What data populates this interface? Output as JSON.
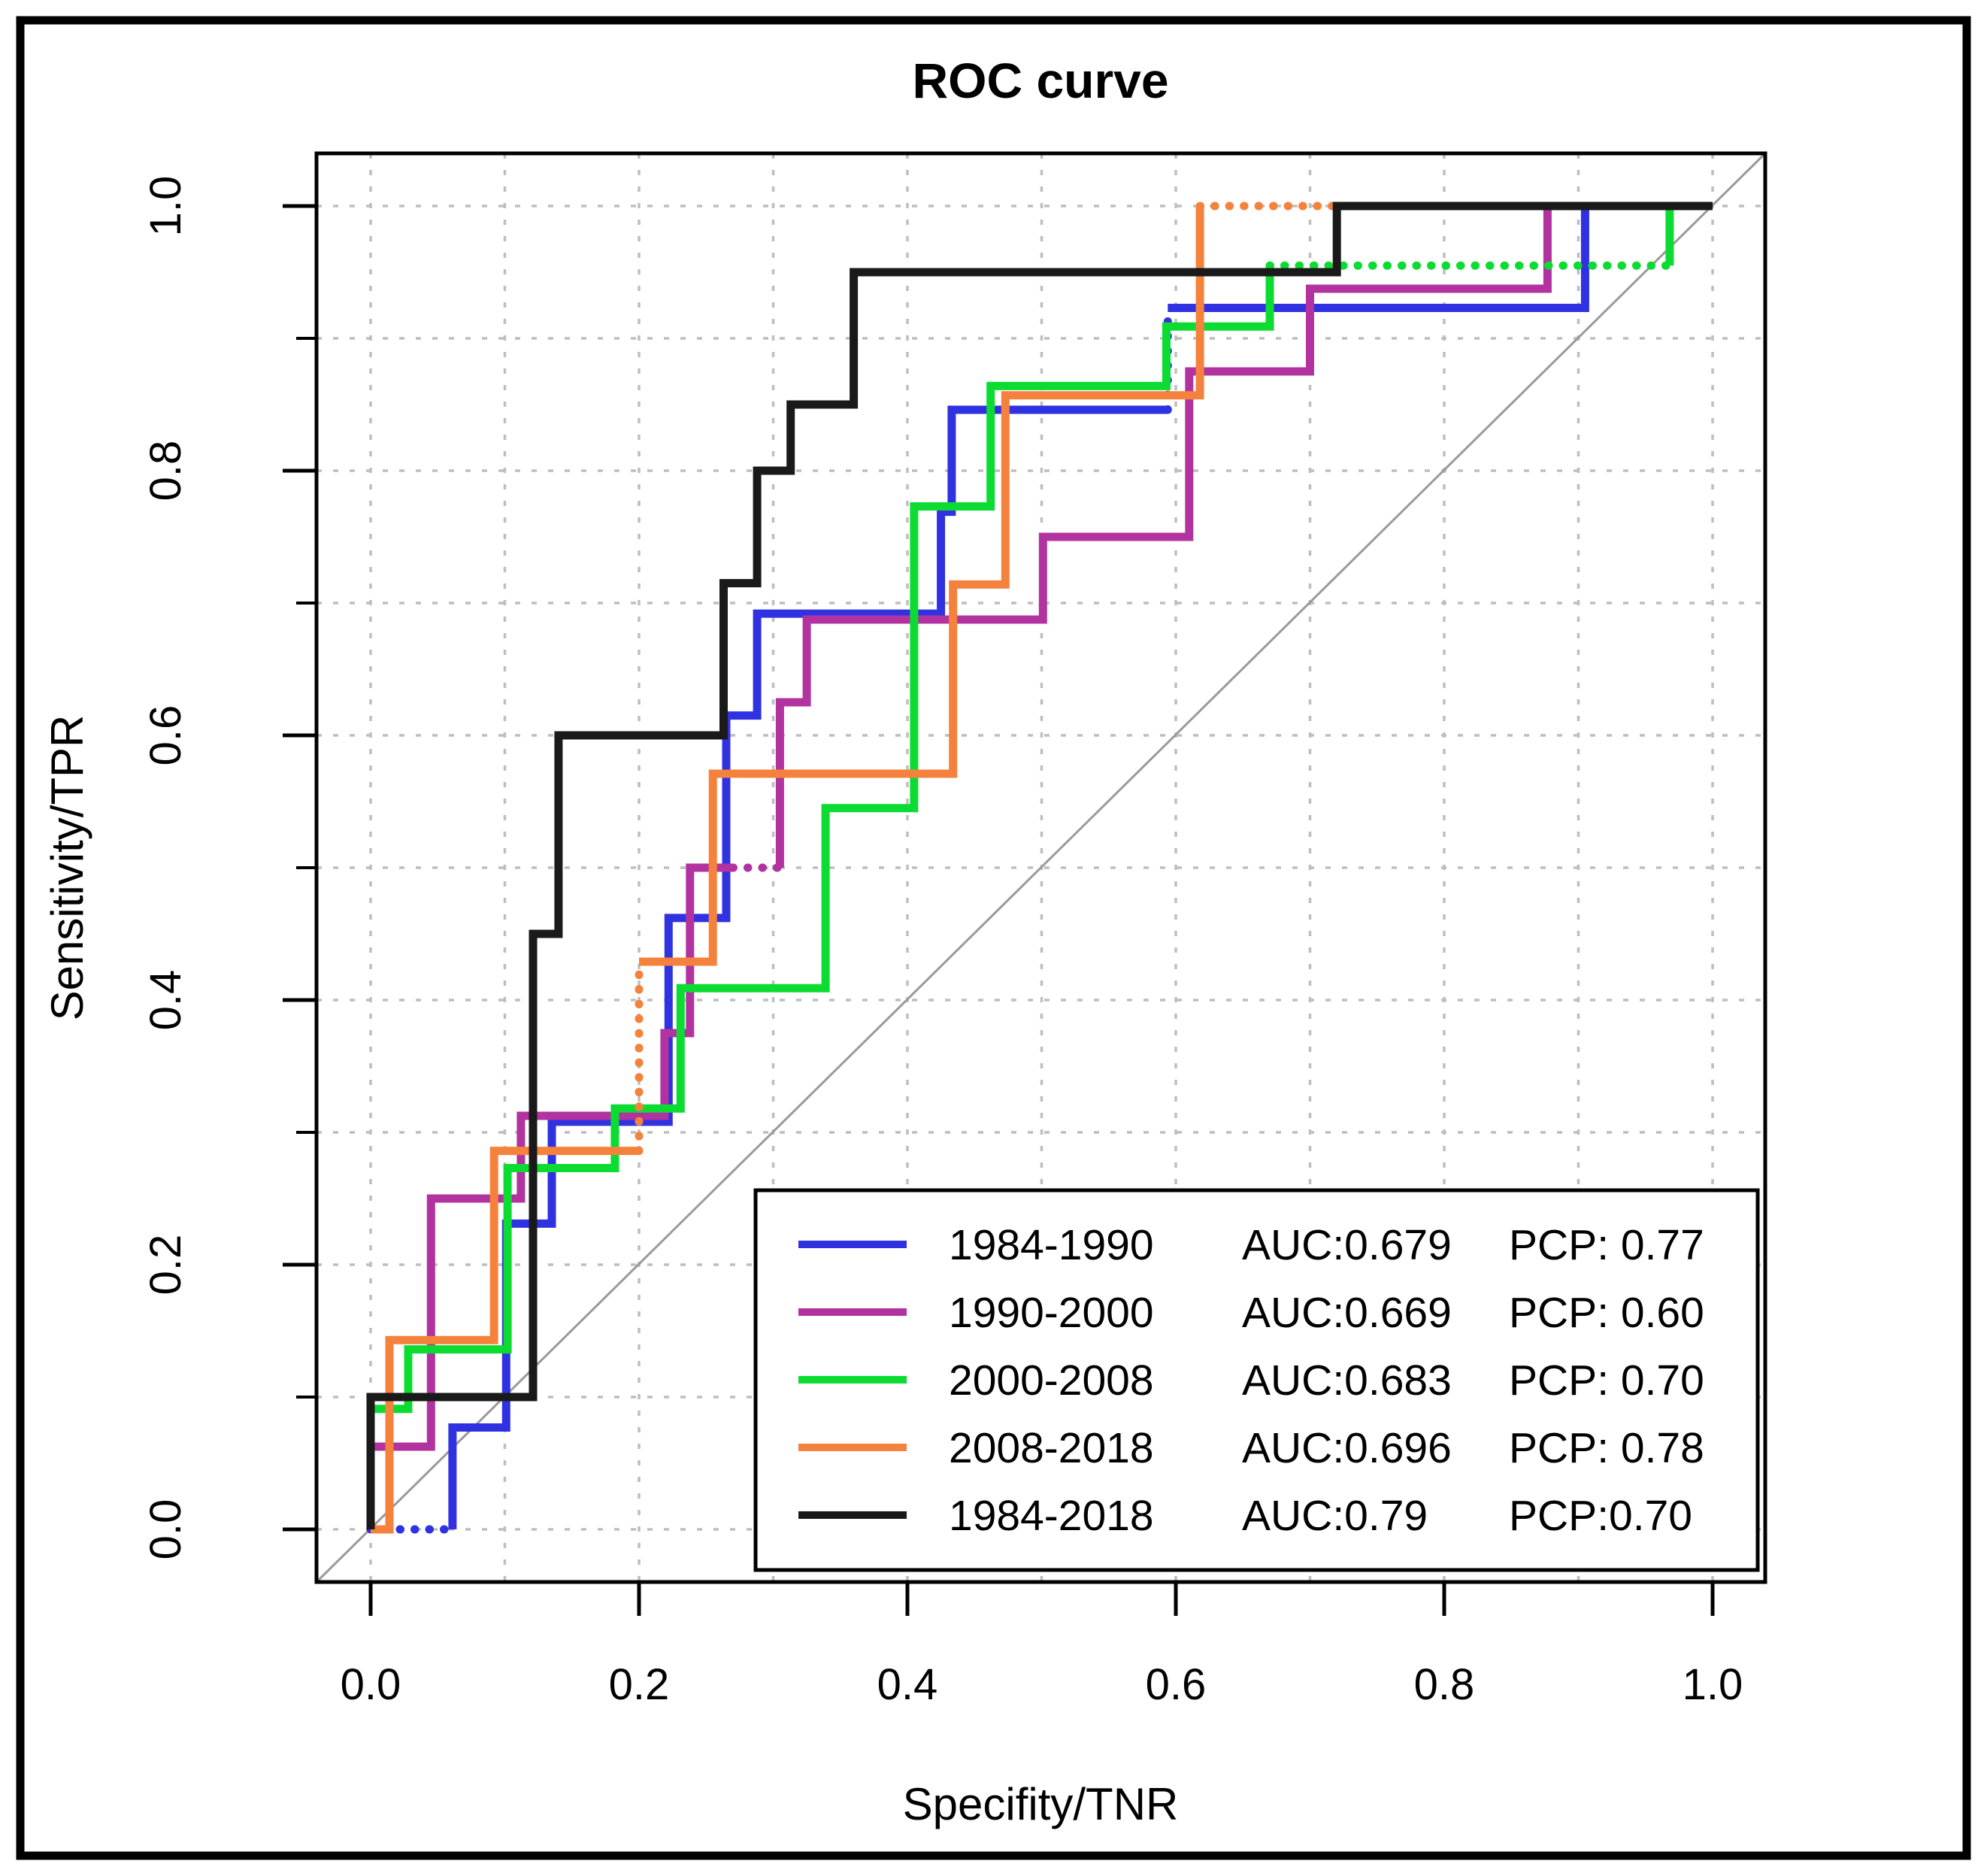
{
  "figure": {
    "background": "#ffffff",
    "outer_border_color": "#000000",
    "axis_color": "#000000",
    "grid_color": "#bebebe",
    "diagonal_color": "#9a9a9a"
  },
  "chart_data": {
    "type": "line",
    "subtype": "roc-step-curves",
    "title": "ROC curve",
    "xlabel": "Specifity/TNR",
    "ylabel": "Sensitivity/TPR",
    "xlim": [
      0,
      1
    ],
    "ylim": [
      0,
      1
    ],
    "x_tick_labels": [
      "0.0",
      "0.2",
      "0.4",
      "0.6",
      "0.8",
      "1.0"
    ],
    "y_tick_labels": [
      "0.0",
      "0.2",
      "0.4",
      "0.6",
      "0.8",
      "1.0"
    ],
    "x_tick_values": [
      0,
      0.2,
      0.4,
      0.6,
      0.8,
      1.0
    ],
    "y_tick_values": [
      0,
      0.2,
      0.4,
      0.6,
      0.8,
      1.0
    ],
    "y_minor_tick_values": [
      0.1,
      0.3,
      0.5,
      0.7,
      0.9
    ],
    "grid": {
      "on": true,
      "interval": 0.1,
      "style": "dotted"
    },
    "diagonal_reference": {
      "on": true,
      "from": [
        0,
        0
      ],
      "to": [
        1,
        1
      ]
    },
    "legend_position": "bottom-right",
    "series": [
      {
        "name": "1984-1990",
        "auc": 0.679,
        "pcp": 0.77,
        "color": "#3032e2",
        "segments": [
          {
            "style": "dotted",
            "pts": [
              [
                0,
                0
              ],
              [
                0.061,
                0
              ]
            ]
          },
          {
            "style": "solid",
            "pts": [
              [
                0.061,
                0
              ],
              [
                0.061,
                0.077
              ],
              [
                0.101,
                0.077
              ],
              [
                0.101,
                0.231
              ],
              [
                0.135,
                0.231
              ],
              [
                0.135,
                0.308
              ],
              [
                0.222,
                0.308
              ],
              [
                0.222,
                0.462
              ],
              [
                0.265,
                0.462
              ],
              [
                0.265,
                0.615
              ],
              [
                0.288,
                0.615
              ],
              [
                0.288,
                0.692
              ],
              [
                0.425,
                0.692
              ],
              [
                0.425,
                0.769
              ],
              [
                0.433,
                0.769
              ],
              [
                0.433,
                0.846
              ],
              [
                0.594,
                0.846
              ]
            ]
          },
          {
            "style": "dotted",
            "pts": [
              [
                0.594,
                0.846
              ],
              [
                0.594,
                0.923
              ]
            ]
          },
          {
            "style": "solid",
            "pts": [
              [
                0.594,
                0.923
              ],
              [
                0.905,
                0.923
              ],
              [
                0.905,
                1
              ],
              [
                1,
                1
              ]
            ]
          }
        ]
      },
      {
        "name": "1990-2000",
        "auc": 0.669,
        "pcp": 0.6,
        "color": "#b232a0",
        "segments": [
          {
            "style": "solid",
            "pts": [
              [
                0,
                0
              ],
              [
                0,
                0.0625
              ],
              [
                0.045,
                0.0625
              ],
              [
                0.045,
                0.25
              ],
              [
                0.112,
                0.25
              ],
              [
                0.112,
                0.3125
              ],
              [
                0.219,
                0.3125
              ],
              [
                0.219,
                0.375
              ],
              [
                0.238,
                0.375
              ],
              [
                0.238,
                0.5
              ],
              [
                0.27,
                0.5
              ]
            ]
          },
          {
            "style": "dotted",
            "pts": [
              [
                0.27,
                0.5
              ],
              [
                0.305,
                0.5
              ]
            ]
          },
          {
            "style": "solid",
            "pts": [
              [
                0.305,
                0.5
              ],
              [
                0.305,
                0.625
              ],
              [
                0.325,
                0.625
              ],
              [
                0.325,
                0.6875
              ],
              [
                0.501,
                0.6875
              ],
              [
                0.501,
                0.75
              ],
              [
                0.61,
                0.75
              ],
              [
                0.61,
                0.875
              ],
              [
                0.7,
                0.875
              ],
              [
                0.7,
                0.9375
              ],
              [
                0.877,
                0.9375
              ],
              [
                0.877,
                1
              ],
              [
                1,
                1
              ]
            ]
          }
        ]
      },
      {
        "name": "2000-2008",
        "auc": 0.683,
        "pcp": 0.7,
        "color": "#0cdc32",
        "segments": [
          {
            "style": "solid",
            "pts": [
              [
                0,
                0
              ],
              [
                0,
                0.091
              ],
              [
                0.028,
                0.091
              ],
              [
                0.028,
                0.136
              ],
              [
                0.102,
                0.136
              ],
              [
                0.102,
                0.273
              ],
              [
                0.182,
                0.273
              ],
              [
                0.182,
                0.318
              ],
              [
                0.231,
                0.318
              ],
              [
                0.231,
                0.409
              ],
              [
                0.339,
                0.409
              ],
              [
                0.339,
                0.545
              ],
              [
                0.405,
                0.545
              ],
              [
                0.405,
                0.773
              ],
              [
                0.462,
                0.773
              ],
              [
                0.462,
                0.864
              ],
              [
                0.593,
                0.864
              ],
              [
                0.593,
                0.909
              ],
              [
                0.67,
                0.909
              ],
              [
                0.67,
                0.955
              ]
            ]
          },
          {
            "style": "dotted",
            "pts": [
              [
                0.67,
                0.955
              ],
              [
                0.968,
                0.955
              ]
            ]
          },
          {
            "style": "solid",
            "pts": [
              [
                0.968,
                0.955
              ],
              [
                0.968,
                1
              ],
              [
                1,
                1
              ]
            ]
          }
        ]
      },
      {
        "name": "2008-2018",
        "auc": 0.696,
        "pcp": 0.78,
        "color": "#f5823c",
        "segments": [
          {
            "style": "solid",
            "pts": [
              [
                0,
                0
              ],
              [
                0.014,
                0
              ],
              [
                0.014,
                0.143
              ],
              [
                0.092,
                0.143
              ],
              [
                0.092,
                0.286
              ],
              [
                0.2,
                0.286
              ]
            ]
          },
          {
            "style": "dotted",
            "pts": [
              [
                0.2,
                0.286
              ],
              [
                0.2,
                0.429
              ]
            ]
          },
          {
            "style": "solid",
            "pts": [
              [
                0.2,
                0.429
              ],
              [
                0.255,
                0.429
              ],
              [
                0.255,
                0.571
              ],
              [
                0.434,
                0.571
              ],
              [
                0.434,
                0.714
              ],
              [
                0.473,
                0.714
              ],
              [
                0.473,
                0.857
              ],
              [
                0.618,
                0.857
              ],
              [
                0.618,
                1
              ]
            ]
          },
          {
            "style": "dotted",
            "pts": [
              [
                0.618,
                1
              ],
              [
                0.72,
                1
              ]
            ]
          },
          {
            "style": "solid",
            "pts": [
              [
                0.72,
                1
              ],
              [
                1,
                1
              ]
            ]
          }
        ]
      },
      {
        "name": "1984-2018",
        "auc": 0.79,
        "pcp": 0.7,
        "color": "#1a1a1a",
        "segments": [
          {
            "style": "solid",
            "pts": [
              [
                0,
                0
              ],
              [
                0,
                0.1
              ],
              [
                0.121,
                0.1
              ],
              [
                0.121,
                0.45
              ],
              [
                0.14,
                0.45
              ],
              [
                0.14,
                0.6
              ],
              [
                0.263,
                0.6
              ],
              [
                0.263,
                0.715
              ],
              [
                0.288,
                0.715
              ],
              [
                0.288,
                0.8
              ],
              [
                0.313,
                0.8
              ],
              [
                0.313,
                0.85
              ],
              [
                0.36,
                0.85
              ],
              [
                0.36,
                0.95
              ],
              [
                0.72,
                0.95
              ],
              [
                0.72,
                1
              ],
              [
                1,
                1
              ]
            ]
          }
        ]
      }
    ],
    "legend_rows": [
      {
        "period": "1984-1990",
        "auc_text": "AUC:0.679",
        "pcp_text": "PCP: 0.77",
        "color": "#3032e2"
      },
      {
        "period": "1990-2000",
        "auc_text": "AUC:0.669",
        "pcp_text": "PCP: 0.60",
        "color": "#b232a0"
      },
      {
        "period": "2000-2008",
        "auc_text": "AUC:0.683",
        "pcp_text": "PCP: 0.70",
        "color": "#0cdc32"
      },
      {
        "period": "2008-2018",
        "auc_text": "AUC:0.696",
        "pcp_text": "PCP: 0.78",
        "color": "#f5823c"
      },
      {
        "period": "1984-2018",
        "auc_text": "AUC:0.79",
        "pcp_text": "PCP:0.70",
        "color": "#1a1a1a"
      }
    ]
  }
}
